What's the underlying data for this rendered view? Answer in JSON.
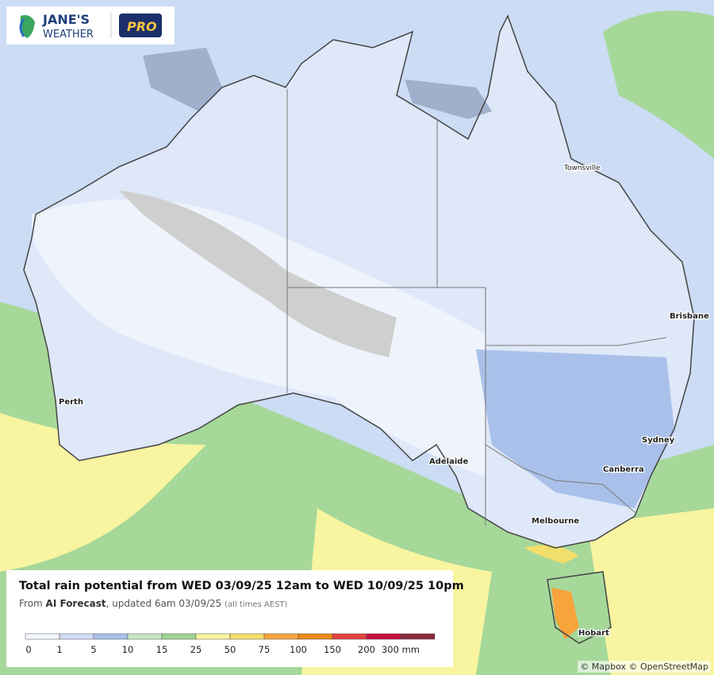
{
  "logo": {
    "line1": "JANE'S",
    "line2": "WEATHER",
    "badge": "PRO"
  },
  "cities": [
    "Townsville",
    "Brisbane",
    "Perth",
    "Sydney",
    "Adelaide",
    "Canberra",
    "Melbourne",
    "Hobart"
  ],
  "legend": {
    "title": "Total rain potential from WED 03/09/25 12am to WED 10/09/25 10pm",
    "subtitle": {
      "prefix": "From ",
      "source": "AI Forecast",
      "updated": ", updated 6am 03/09/25",
      "note": "(all times AEST)"
    },
    "labels": [
      "0",
      "1",
      "5",
      "10",
      "15",
      "25",
      "50",
      "75",
      "100",
      "150",
      "200",
      "300 mm"
    ],
    "colors": [
      "#f4f7fd",
      "#cfdcf5",
      "#a9c1ea",
      "#c4e6c2",
      "#9fd58f",
      "#f8f4a0",
      "#f2de6a",
      "#f7a43c",
      "#ea8a17",
      "#e5413d",
      "#c5103f",
      "#8a2a3e"
    ]
  },
  "attribution": "© Mapbox © OpenStreetMap"
}
